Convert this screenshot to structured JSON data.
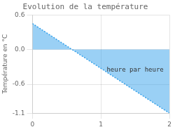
{
  "chart_data": {
    "type": "line",
    "title": "Evolution de la température",
    "ylabel": "Température en °C",
    "annotations": [
      {
        "text": "heure par heure",
        "x": 1.5,
        "y": -0.35
      }
    ],
    "x": [
      0,
      2
    ],
    "values": [
      0.45,
      -1.1
    ],
    "line_style": "dotted",
    "xlim": [
      0,
      2
    ],
    "xticks": [
      0,
      1,
      2
    ],
    "ylim": [
      -1.1,
      0.6
    ],
    "yticks": [
      -1.1,
      -0.6,
      {
        "value": 0,
        "label": "0.0"
      },
      0.6
    ],
    "grid": true
  }
}
